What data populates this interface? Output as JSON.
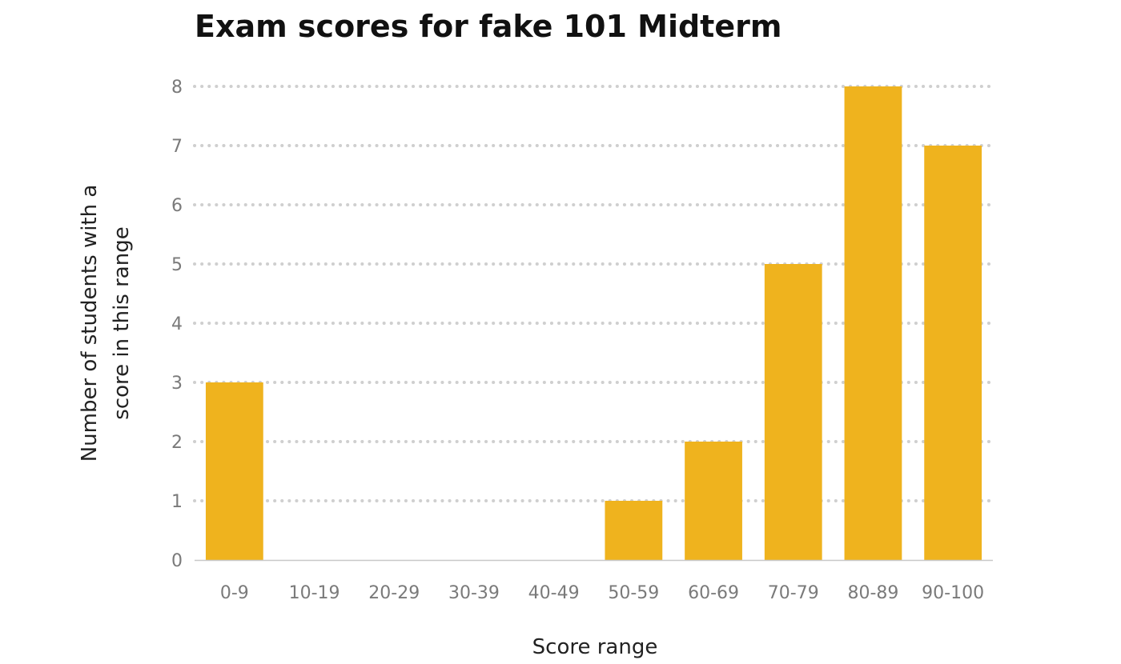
{
  "chart_data": {
    "type": "bar",
    "title": "Exam scores for fake 101 Midterm",
    "xlabel": "Score range",
    "ylabel_lines": [
      "Number of students with a",
      "score in this range"
    ],
    "categories": [
      "0-9",
      "10-19",
      "20-29",
      "30-39",
      "40-49",
      "50-59",
      "60-69",
      "70-79",
      "80-89",
      "90-100"
    ],
    "values": [
      3,
      0,
      0,
      0,
      0,
      1,
      2,
      5,
      8,
      7
    ],
    "ylim": [
      0,
      8
    ],
    "yticks": [
      "0",
      "1",
      "2",
      "3",
      "4",
      "5",
      "6",
      "7",
      "8"
    ],
    "grid": true,
    "legend": "none",
    "bar_color": "#EFB31E"
  }
}
